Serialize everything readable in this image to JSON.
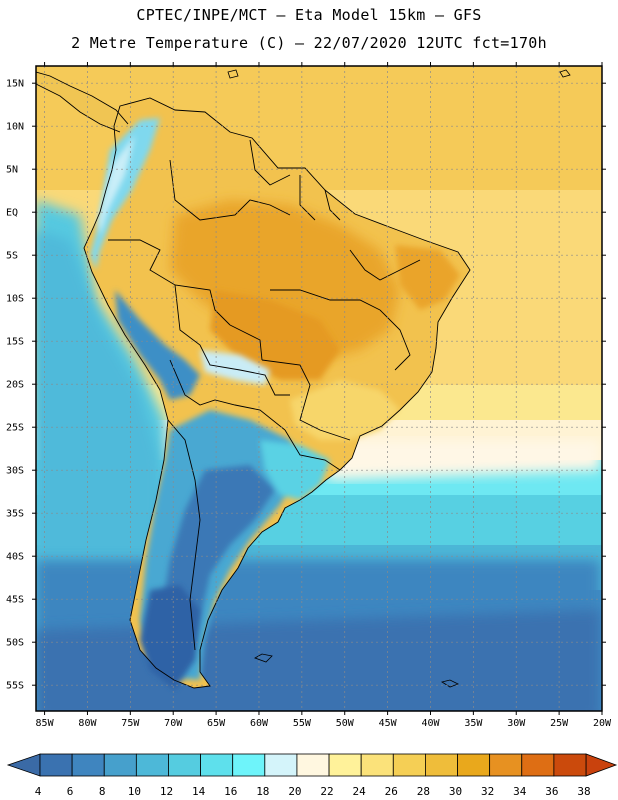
{
  "title": {
    "line1": "CPTEC/INPE/MCT –  Eta Model 15km – GFS",
    "line2": "2 Metre Temperature (C) – 22/07/2020 12UTC fct=170h"
  },
  "map": {
    "lat_labels": [
      "15N",
      "10N",
      "5N",
      "EQ",
      "5S",
      "10S",
      "15S",
      "20S",
      "25S",
      "30S",
      "35S",
      "40S",
      "45S",
      "50S",
      "55S"
    ],
    "lon_labels": [
      "85W",
      "80W",
      "75W",
      "70W",
      "65W",
      "60W",
      "55W",
      "50W",
      "45W",
      "40W",
      "35W",
      "30W",
      "25W",
      "20W"
    ]
  },
  "colorbar": {
    "labels": [
      "4",
      "6",
      "8",
      "10",
      "12",
      "14",
      "16",
      "18",
      "20",
      "22",
      "24",
      "26",
      "28",
      "30",
      "32",
      "34",
      "36",
      "38"
    ],
    "colors": [
      "#3a72b0",
      "#3f85bf",
      "#46a0cc",
      "#4db8d8",
      "#55cce0",
      "#5ee0ec",
      "#6ef4fa",
      "#d4f4fa",
      "#fff7e0",
      "#fff29a",
      "#fbe27a",
      "#f5cf55",
      "#efbd3a",
      "#e9a81c",
      "#e79121",
      "#de6e14",
      "#cb4a0c"
    ],
    "low_color": "#3a6aa6",
    "high_color": "#c9420d"
  },
  "legend_colors": {
    "ocean_deep": "#3670b5",
    "ocean_mid": "#47a2ce",
    "ocean_light": "#5dd6e6",
    "warm_tropics": "#f3c95a",
    "hot_interior": "#eaa126",
    "coast_lines": "#000000"
  }
}
